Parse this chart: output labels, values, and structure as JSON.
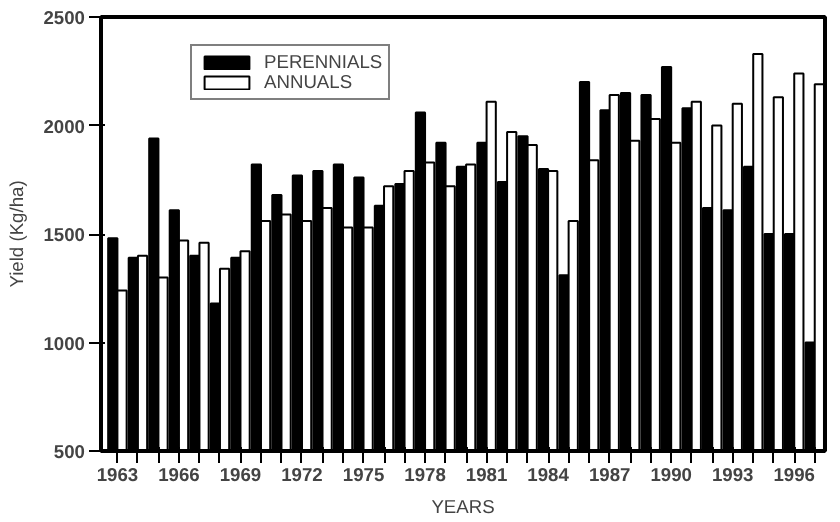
{
  "chart_data": {
    "type": "bar",
    "xlabel": "YEARS",
    "ylabel": "Yield (Kg/ha)",
    "x": [
      1963,
      1964,
      1965,
      1966,
      1967,
      1968,
      1969,
      1970,
      1971,
      1972,
      1973,
      1974,
      1975,
      1976,
      1977,
      1978,
      1979,
      1980,
      1981,
      1982,
      1983,
      1984,
      1985,
      1986,
      1987,
      1988,
      1989,
      1990,
      1991,
      1992,
      1993,
      1994,
      1995,
      1996,
      1997
    ],
    "series": [
      {
        "name": "PERENNIALS",
        "color": "#000000",
        "values": [
          1480,
          1390,
          1940,
          1610,
          1400,
          1180,
          1390,
          1820,
          1680,
          1770,
          1790,
          1820,
          1760,
          1630,
          1730,
          2060,
          1920,
          1810,
          1920,
          1740,
          1950,
          1800,
          1310,
          2200,
          2070,
          2150,
          2140,
          2270,
          2080,
          1620,
          1610,
          1810,
          1500,
          1500,
          1000
        ]
      },
      {
        "name": "ANNUALS",
        "color": "#ffffff",
        "values": [
          1240,
          1400,
          1300,
          1470,
          1460,
          1340,
          1420,
          1560,
          1590,
          1560,
          1620,
          1530,
          1530,
          1720,
          1790,
          1830,
          1720,
          1820,
          2110,
          1970,
          1910,
          1790,
          1560,
          1840,
          2140,
          1930,
          2030,
          1920,
          2110,
          2000,
          2100,
          2330,
          2130,
          2240,
          2190
        ]
      }
    ],
    "xlim": [
      1962.2,
      1997.5
    ],
    "ylim": [
      500,
      2500
    ],
    "xticks": [
      1963,
      {
        "value": 1964,
        "label": null
      },
      {
        "value": 1965,
        "label": null
      },
      1966,
      {
        "value": 1967,
        "label": null
      },
      {
        "value": 1968,
        "label": null
      },
      1969,
      {
        "value": 1970,
        "label": null
      },
      {
        "value": 1971,
        "label": null
      },
      1972,
      {
        "value": 1973,
        "label": null
      },
      {
        "value": 1974,
        "label": null
      },
      1975,
      {
        "value": 1976,
        "label": null
      },
      {
        "value": 1977,
        "label": null
      },
      1978,
      {
        "value": 1979,
        "label": null
      },
      {
        "value": 1980,
        "label": null
      },
      1981,
      {
        "value": 1982,
        "label": null
      },
      {
        "value": 1983,
        "label": null
      },
      1984,
      {
        "value": 1985,
        "label": null
      },
      {
        "value": 1986,
        "label": null
      },
      1987,
      {
        "value": 1988,
        "label": null
      },
      {
        "value": 1989,
        "label": null
      },
      1990,
      {
        "value": 1991,
        "label": null
      },
      {
        "value": 1992,
        "label": null
      },
      1993,
      {
        "value": 1994,
        "label": null
      },
      {
        "value": 1995,
        "label": null
      },
      1996,
      {
        "value": 1997,
        "label": null
      }
    ],
    "yticks": [
      500,
      1000,
      1500,
      2000,
      2500
    ],
    "grid": false,
    "legend": "top left"
  }
}
